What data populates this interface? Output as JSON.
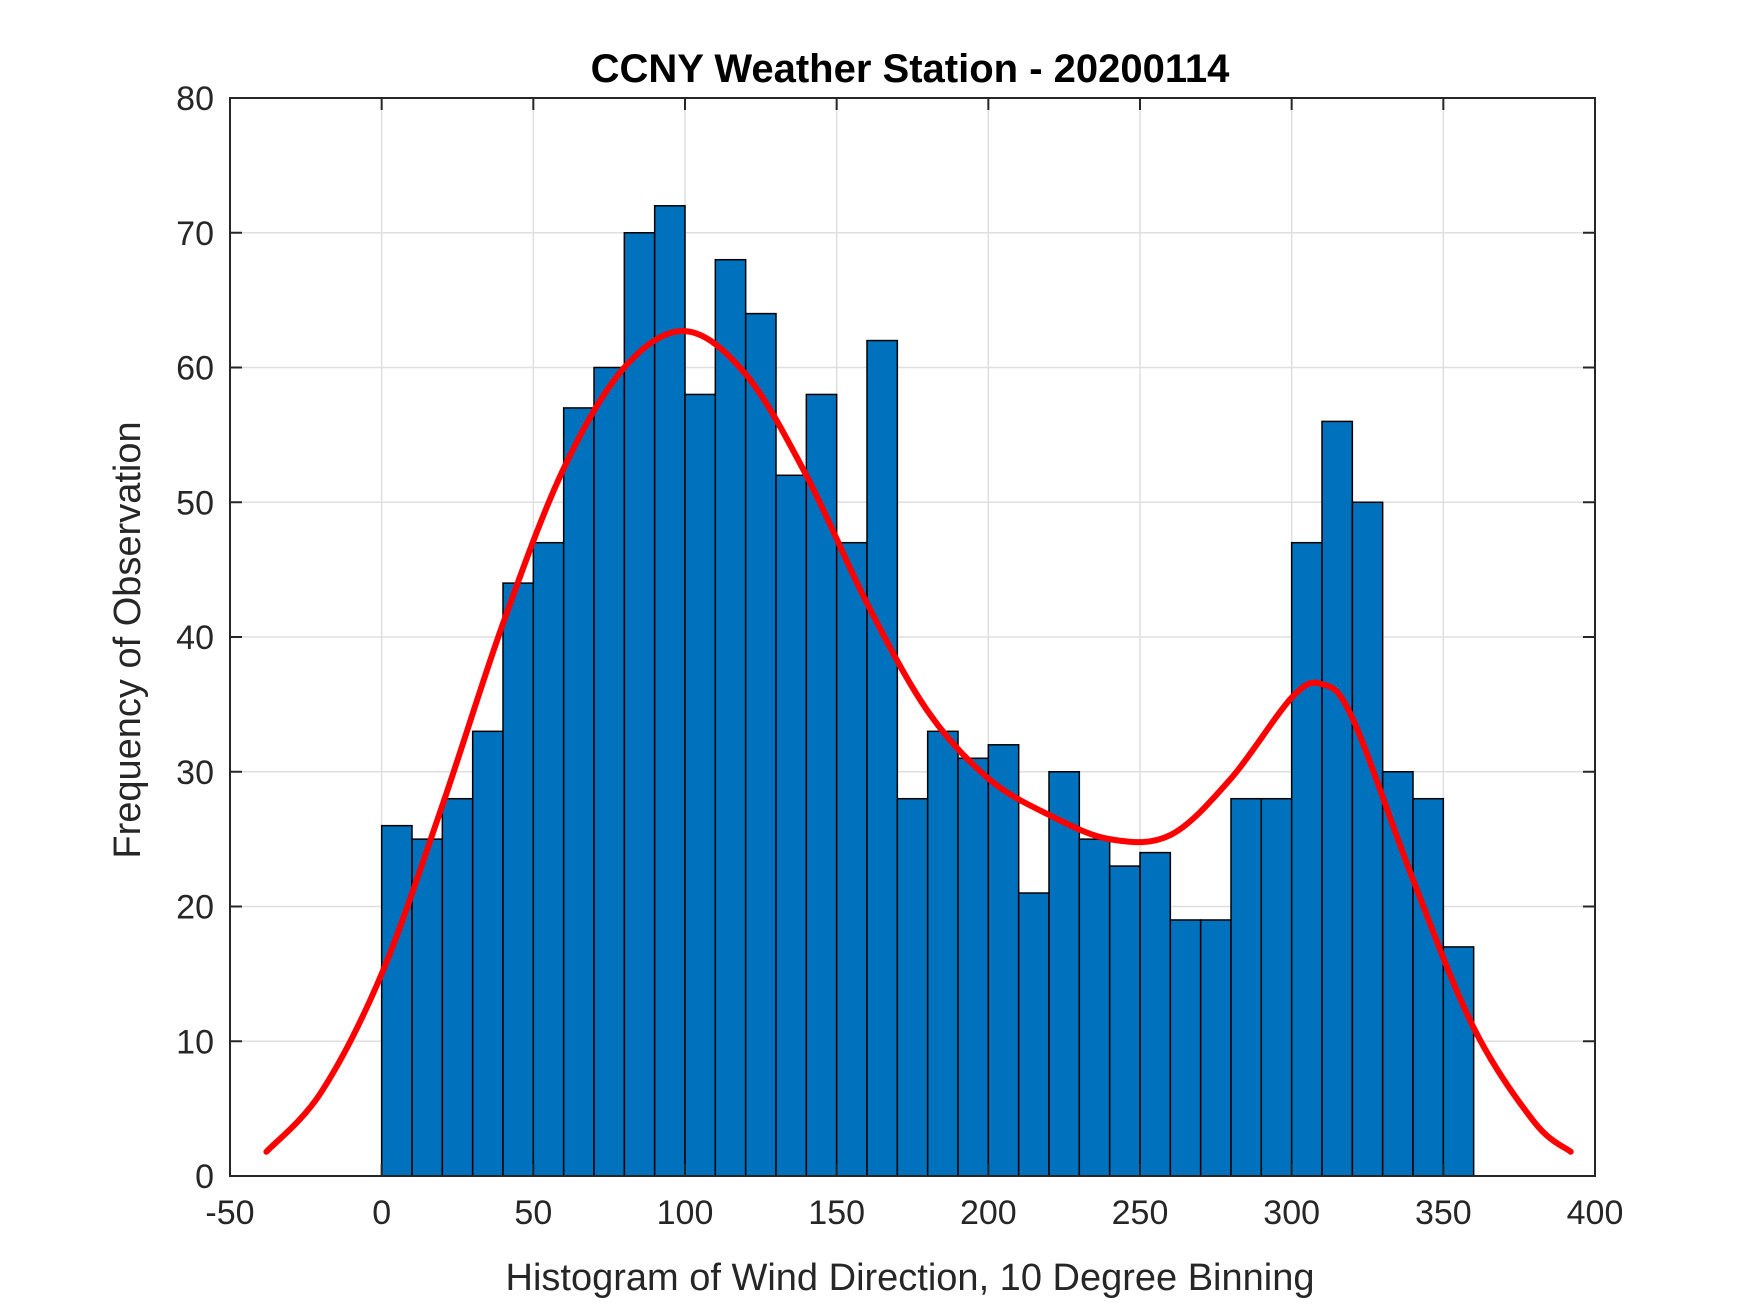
{
  "chart_data": {
    "type": "bar",
    "title": "CCNY Weather Station - 20200114",
    "xlabel": "Histogram of Wind Direction, 10 Degree Binning",
    "ylabel": "Frequency of Observation",
    "xlim": [
      -50,
      400
    ],
    "ylim": [
      0,
      80
    ],
    "xticks": [
      -50,
      0,
      50,
      100,
      150,
      200,
      250,
      300,
      350,
      400
    ],
    "yticks": [
      0,
      10,
      20,
      30,
      40,
      50,
      60,
      70,
      80
    ],
    "grid": true,
    "bin_width": 10,
    "bin_edges_start": 0,
    "bar_color": "#0072BD",
    "fit_color": "#FF0000",
    "series": [
      {
        "values": [
          26,
          25,
          28,
          33,
          44,
          47,
          57,
          60,
          70,
          72,
          58,
          68,
          64,
          52,
          58,
          47,
          62,
          28,
          33,
          31,
          32,
          21,
          30,
          25,
          23,
          24,
          19,
          19,
          28,
          28,
          47,
          56,
          50,
          30,
          28,
          17
        ]
      }
    ],
    "fit_curve": {
      "x": [
        -38,
        -20,
        0,
        20,
        40,
        60,
        80,
        100,
        120,
        140,
        160,
        180,
        200,
        220,
        240,
        260,
        280,
        300,
        310,
        320,
        340,
        360,
        380,
        392
      ],
      "y": [
        1.8,
        6.2,
        15.0,
        27.5,
        41.0,
        52.5,
        60.0,
        62.7,
        59.5,
        52.0,
        42.5,
        34.5,
        29.5,
        26.8,
        25.0,
        25.3,
        29.5,
        35.5,
        36.5,
        34.0,
        22.0,
        11.0,
        4.0,
        1.8
      ]
    }
  }
}
